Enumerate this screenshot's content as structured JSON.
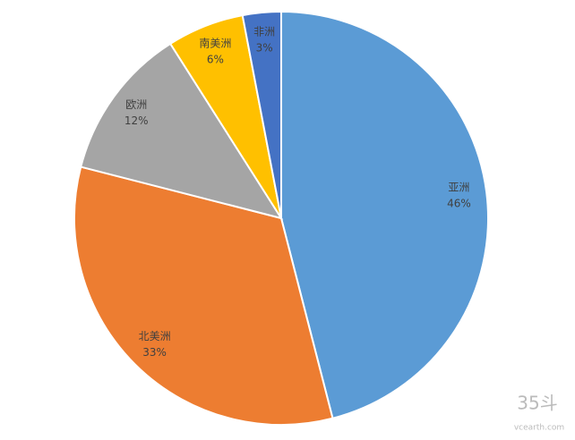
{
  "chart_data": {
    "type": "pie",
    "categories": [
      "亚洲",
      "北美洲",
      "欧洲",
      "南美洲",
      "非洲"
    ],
    "values": [
      46,
      33,
      12,
      6,
      3
    ],
    "value_labels": [
      "46%",
      "33%",
      "12%",
      "6%",
      "3%"
    ],
    "colors": [
      "#5b9bd5",
      "#ed7d31",
      "#a5a5a5",
      "#ffc000",
      "#4472c4"
    ]
  },
  "watermark": {
    "logo": "35斗",
    "site": "vcearth.com"
  }
}
